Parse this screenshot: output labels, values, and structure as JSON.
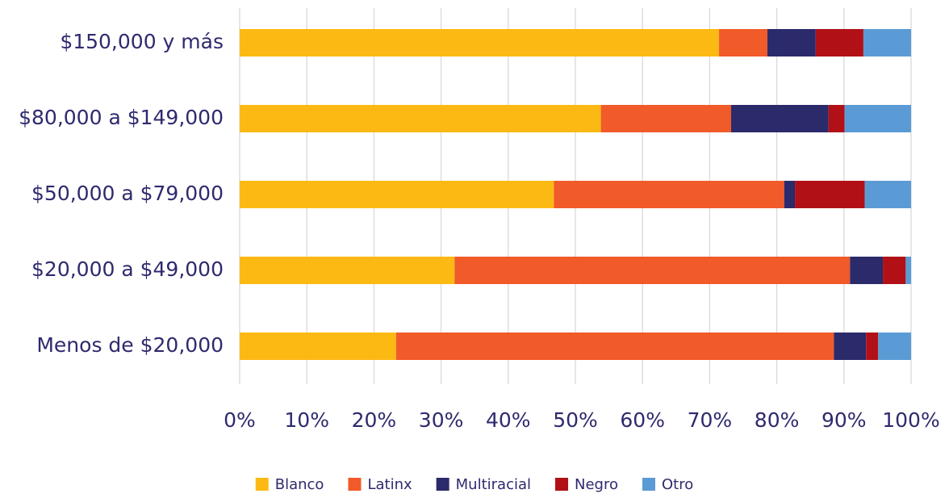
{
  "chart_data": {
    "type": "stacked_barh",
    "categories": [
      "$150,000 y más",
      "$80,000 a $149,000",
      "$50,000 a $79,000",
      "$20,000 a $49,000",
      "Menos de $20,000"
    ],
    "series": [
      {
        "name": "Blanco",
        "color": "#fdb913",
        "values": [
          71.4,
          53.8,
          46.8,
          32.0,
          23.3
        ]
      },
      {
        "name": "Latinx",
        "color": "#f15a29",
        "values": [
          7.2,
          19.4,
          34.3,
          58.9,
          65.2
        ]
      },
      {
        "name": "Multiracial",
        "color": "#2b2a6b",
        "values": [
          7.2,
          14.5,
          1.6,
          4.9,
          4.8
        ]
      },
      {
        "name": "Negro",
        "color": "#b11116",
        "values": [
          7.1,
          2.4,
          10.4,
          3.4,
          1.8
        ]
      },
      {
        "name": "Otro",
        "color": "#5b9bd5",
        "values": [
          7.1,
          9.9,
          6.9,
          0.8,
          4.9
        ]
      }
    ],
    "xlim": [
      0,
      100
    ],
    "xticks": [
      {
        "value": 0,
        "label": "0%"
      },
      {
        "value": 10,
        "label": "10%"
      },
      {
        "value": 20,
        "label": "20%"
      },
      {
        "value": 30,
        "label": "30%"
      },
      {
        "value": 40,
        "label": "40%"
      },
      {
        "value": 50,
        "label": "50%"
      },
      {
        "value": 60,
        "label": "60%"
      },
      {
        "value": 70,
        "label": "70%"
      },
      {
        "value": 80,
        "label": "80%"
      },
      {
        "value": 90,
        "label": "90%"
      },
      {
        "value": 100,
        "label": "100%"
      }
    ],
    "grid": true,
    "legend": "bottom"
  }
}
